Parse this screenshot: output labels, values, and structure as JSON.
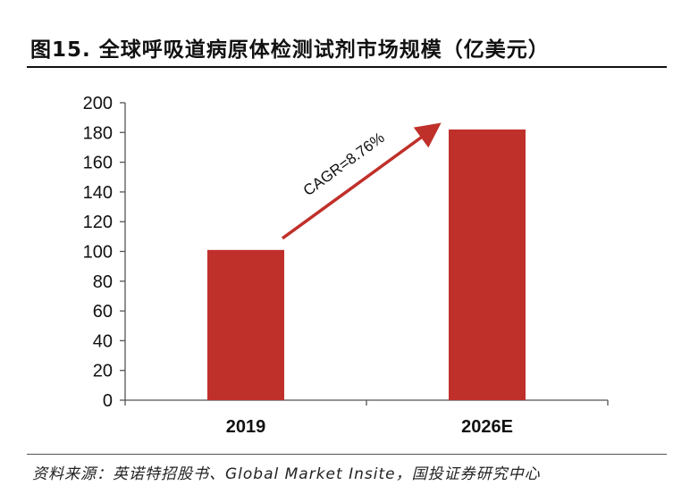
{
  "header": {
    "title": "图15. 全球呼吸道病原体检测试剂市场规模（亿美元）"
  },
  "footer": {
    "source": "资料来源：英诺特招股书、Global Market Insite，国投证券研究中心"
  },
  "colors": {
    "bar": "#c0302a",
    "arrow": "#c0302a",
    "axis": "#555555",
    "text": "#111111"
  },
  "chart_data": {
    "type": "bar",
    "title": "全球呼吸道病原体检测试剂市场规模（亿美元）",
    "categories": [
      "2019",
      "2026E"
    ],
    "values": [
      101,
      182
    ],
    "ylim": [
      0,
      200
    ],
    "yticks": [
      0,
      20,
      40,
      60,
      80,
      100,
      120,
      140,
      160,
      180,
      200
    ],
    "xlabel": "",
    "ylabel": "",
    "grid": false,
    "annotation": {
      "text": "CAGR=8.76%",
      "from": {
        "category": "2019",
        "value": 110
      },
      "to": {
        "category": "2026E",
        "value": 184
      }
    }
  }
}
